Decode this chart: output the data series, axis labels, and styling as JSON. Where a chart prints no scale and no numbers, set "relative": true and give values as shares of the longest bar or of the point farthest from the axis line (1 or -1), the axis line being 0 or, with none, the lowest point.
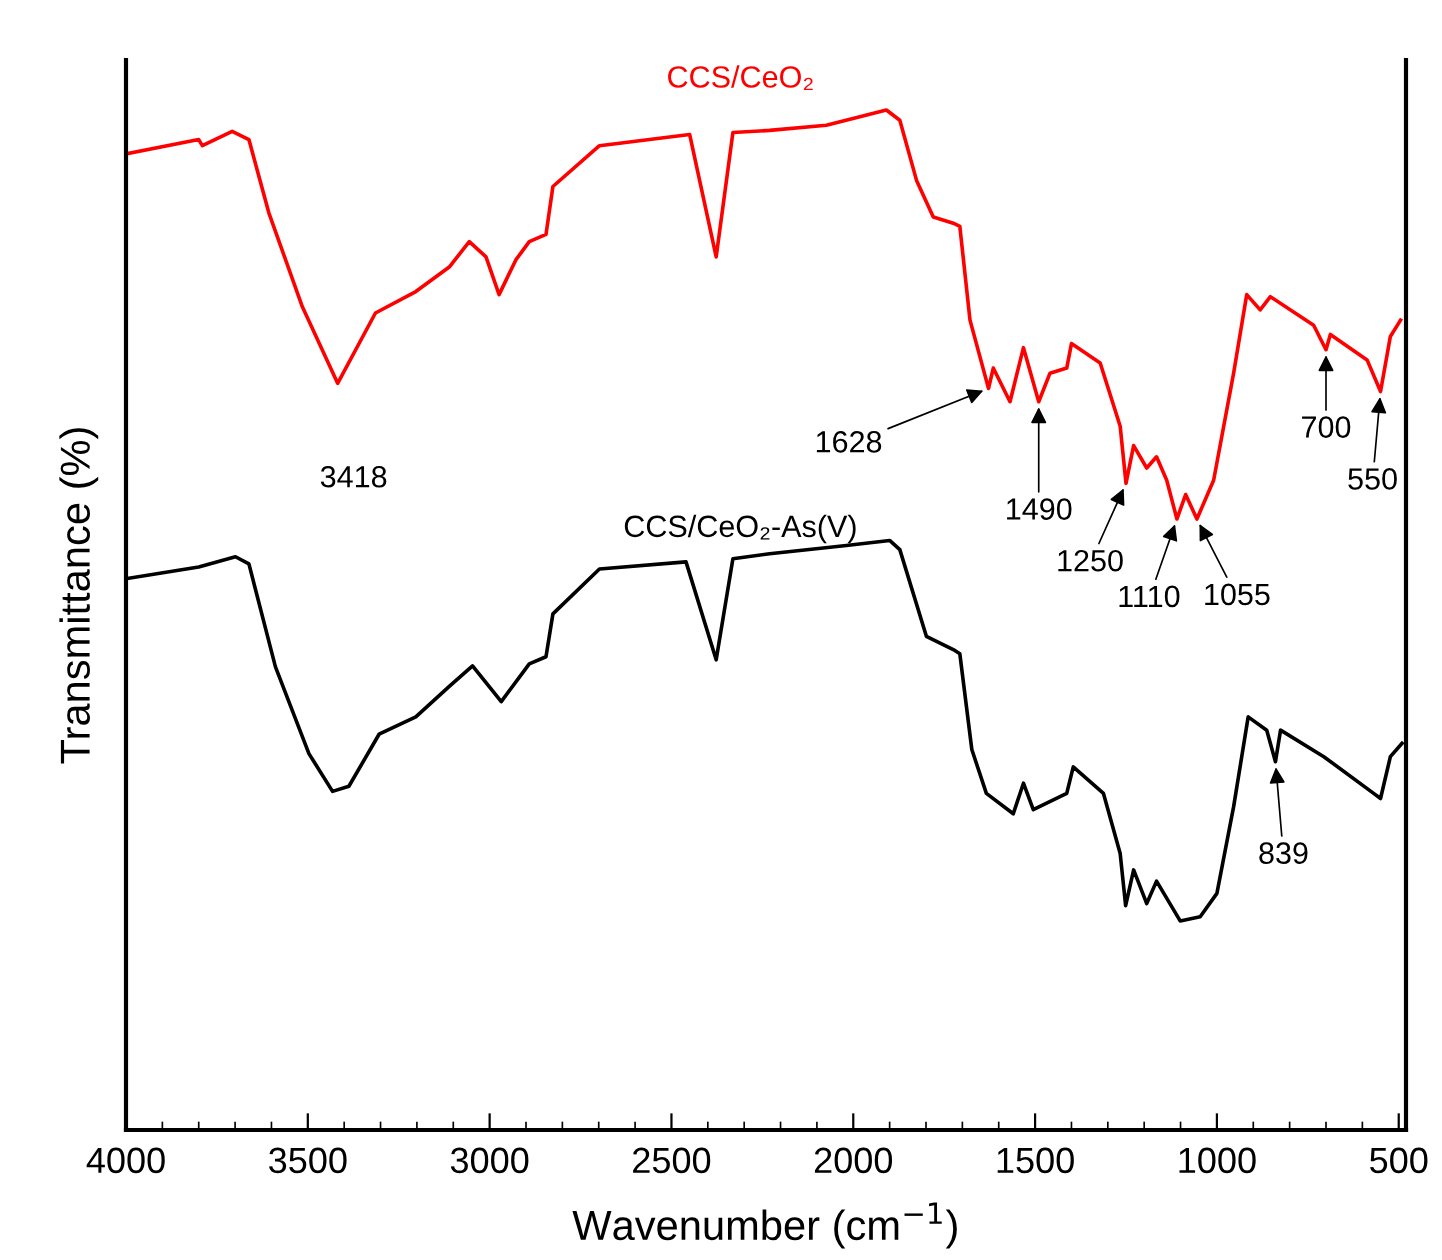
{
  "chart_data": {
    "type": "line",
    "relative": true,
    "xlabel": "Wavenumber (cm$^{−1}$)",
    "ylabel": "Transmittance (%)",
    "xlim": [
      4000,
      480
    ],
    "xticks": [
      4000,
      3500,
      3000,
      2500,
      2000,
      1500,
      1000,
      500
    ],
    "grid": false,
    "legend": false,
    "marker": "none",
    "line_style": "solid",
    "x": [
      4000,
      3800,
      3790,
      3708,
      3662,
      3607,
      3515,
      3418,
      3314,
      3203,
      3111,
      3056,
      3010,
      2974,
      2928,
      2891,
      2845,
      2826,
      2698,
      2450,
      2377,
      2331,
      2230,
      2074,
      1909,
      1872,
      1826,
      1780,
      1725,
      1707,
      1679,
      1628,
      1615,
      1569,
      1532,
      1490,
      1459,
      1413,
      1400,
      1321,
      1266,
      1250,
      1229,
      1193,
      1166,
      1138,
      1110,
      1086,
      1055,
      1009,
      954,
      918,
      881,
      853,
      734,
      700,
      688,
      587,
      550,
      523,
      495
    ],
    "series": [
      {
        "name": "CCS/CeO₂",
        "color": "#ff0000",
        "values": [
          0.957,
          0.971,
          0.965,
          0.979,
          0.971,
          0.899,
          0.807,
          0.732,
          0.801,
          0.822,
          0.846,
          0.871,
          0.856,
          0.819,
          0.853,
          0.871,
          0.878,
          0.925,
          0.965,
          0.976,
          0.856,
          0.978,
          0.98,
          0.985,
          1.0,
          0.99,
          0.931,
          0.895,
          0.889,
          0.886,
          0.794,
          0.727,
          0.747,
          0.714,
          0.767,
          0.714,
          0.742,
          0.747,
          0.771,
          0.752,
          0.69,
          0.634,
          0.671,
          0.649,
          0.66,
          0.637,
          0.599,
          0.623,
          0.599,
          0.637,
          0.742,
          0.819,
          0.804,
          0.817,
          0.789,
          0.765,
          0.78,
          0.755,
          0.724,
          0.778,
          0.794
        ]
      },
      {
        "name": "CCS/CeO₂-As(V)",
        "color": "#000000",
        "x": [
          3992,
          3800,
          3699,
          3662,
          3589,
          3497,
          3432,
          3387,
          3304,
          3203,
          3111,
          3047,
          2968,
          2891,
          2845,
          2826,
          2698,
          2460,
          2377,
          2331,
          2230,
          2019,
          1900,
          1872,
          1799,
          1725,
          1707,
          1674,
          1634,
          1560,
          1532,
          1505,
          1413,
          1395,
          1312,
          1266,
          1251,
          1229,
          1193,
          1166,
          1101,
          1046,
          1000,
          954,
          914,
          863,
          839,
          825,
          706,
          569,
          550,
          523,
          491
        ],
        "values": [
          0.541,
          0.552,
          0.562,
          0.555,
          0.454,
          0.369,
          0.332,
          0.337,
          0.388,
          0.405,
          0.435,
          0.455,
          0.42,
          0.457,
          0.464,
          0.506,
          0.55,
          0.557,
          0.461,
          0.56,
          0.565,
          0.573,
          0.578,
          0.569,
          0.484,
          0.471,
          0.467,
          0.373,
          0.33,
          0.31,
          0.34,
          0.314,
          0.33,
          0.356,
          0.33,
          0.271,
          0.22,
          0.255,
          0.222,
          0.244,
          0.205,
          0.209,
          0.232,
          0.317,
          0.405,
          0.392,
          0.361,
          0.392,
          0.366,
          0.33,
          0.325,
          0.366,
          0.379
        ]
      }
    ],
    "annotations": [
      {
        "text": "3418",
        "x": 3418,
        "y": 0.732
      },
      {
        "text": "1628",
        "x": 1628,
        "y": 0.727
      },
      {
        "text": "1490",
        "x": 1490,
        "y": 0.714
      },
      {
        "text": "1250",
        "x": 1250,
        "y": 0.634
      },
      {
        "text": "1110",
        "x": 1110,
        "y": 0.599
      },
      {
        "text": "1055",
        "x": 1055,
        "y": 0.599
      },
      {
        "text": "700",
        "x": 700,
        "y": 0.765
      },
      {
        "text": "550",
        "x": 550,
        "y": 0.724
      },
      {
        "text": "839",
        "x": 839,
        "y": 0.361
      }
    ]
  }
}
